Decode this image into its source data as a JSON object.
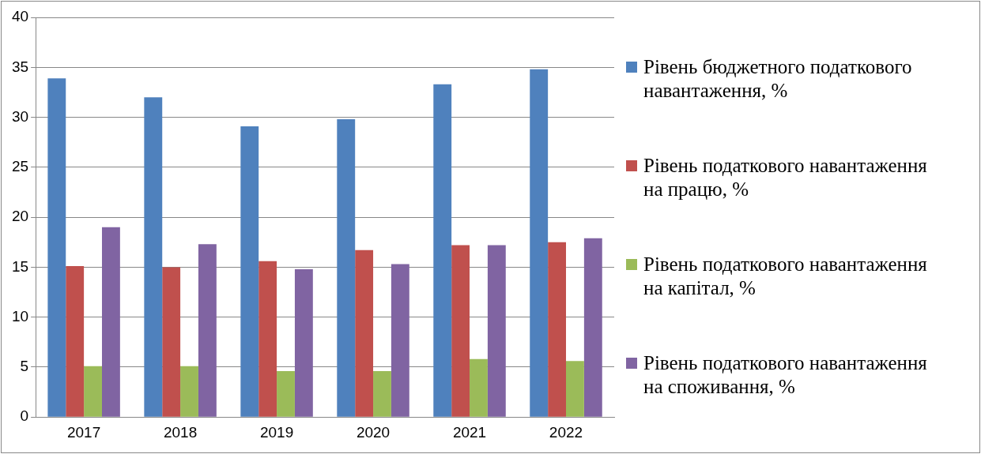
{
  "chart_data": {
    "type": "bar",
    "categories": [
      "2017",
      "2018",
      "2019",
      "2020",
      "2021",
      "2022"
    ],
    "series": [
      {
        "name": "Рівень бюджетного податкового навантаження, %",
        "color": "#4f81bd",
        "values": [
          33.9,
          32.0,
          29.1,
          29.8,
          33.3,
          34.8
        ]
      },
      {
        "name": "Рівень податкового навантаження на працю, %",
        "color": "#c0504d",
        "values": [
          15.1,
          15.0,
          15.6,
          16.7,
          17.2,
          17.5
        ]
      },
      {
        "name": "Рівень податкового навантаження на капітал, %",
        "color": "#9bbb59",
        "values": [
          5.1,
          5.1,
          4.6,
          4.6,
          5.8,
          5.6
        ]
      },
      {
        "name": "Рівень податкового навантаження на споживання, %",
        "color": "#8064a2",
        "values": [
          19.0,
          17.3,
          14.8,
          15.3,
          17.2,
          17.9
        ]
      }
    ],
    "ylim": [
      0,
      40
    ],
    "yticks": [
      0,
      5,
      10,
      15,
      20,
      25,
      30,
      35,
      40
    ],
    "grid": "y",
    "legend": "right"
  }
}
